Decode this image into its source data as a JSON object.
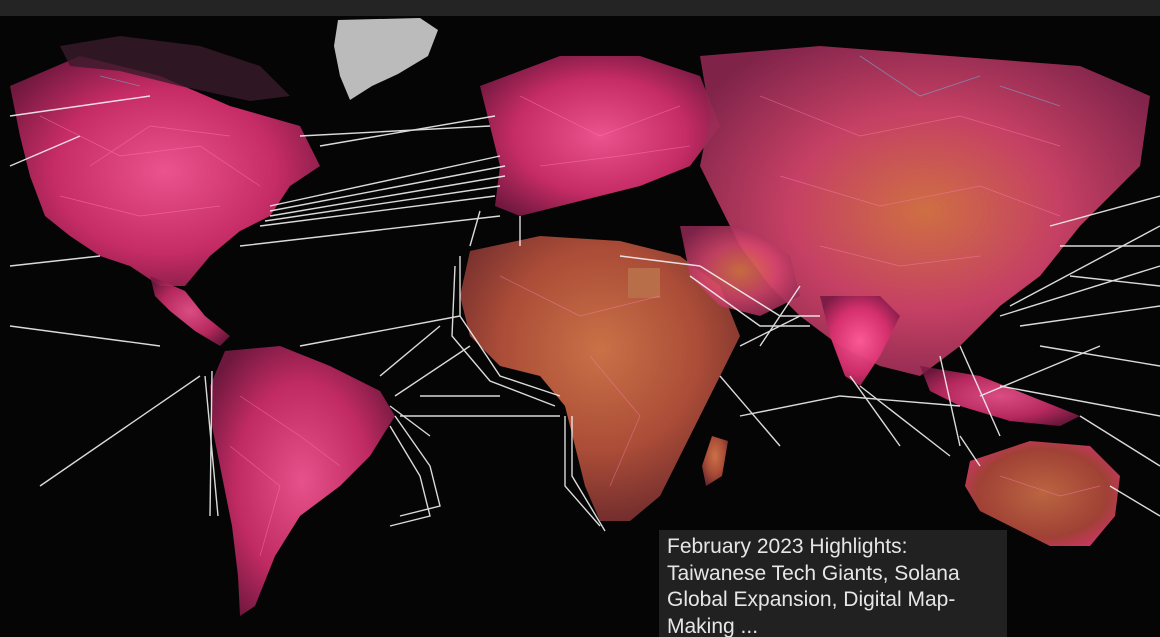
{
  "image": {
    "subject": "world-map-network-visualization",
    "colors": {
      "background": "#050505",
      "land_networks": "#e0407a",
      "africa_land": "#b8553a",
      "submarine_cables": "#f2f2f2",
      "greenland": "#cfcfcf"
    }
  },
  "caption": {
    "text": "February 2023 Highlights: Taiwanese Tech Giants, Solana Global Expansion, Digital Map-Making ..."
  }
}
